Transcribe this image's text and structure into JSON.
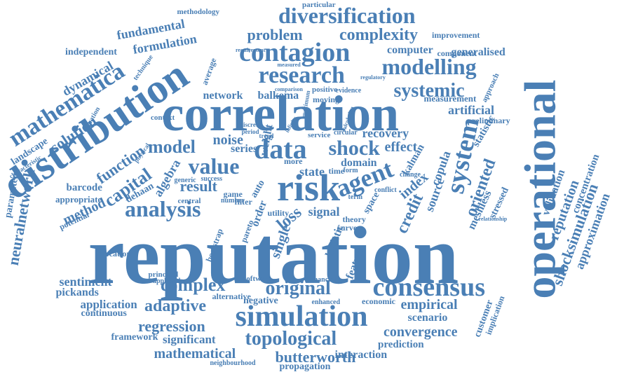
{
  "color": "#4a7fb5",
  "words": [
    {
      "text": "reputation"
    },
    {
      "text": "operational"
    },
    {
      "text": "correlation"
    },
    {
      "text": "distribution"
    },
    {
      "text": "risk"
    },
    {
      "text": "mathematica"
    },
    {
      "text": "simulation"
    },
    {
      "text": "consensus"
    },
    {
      "text": "contagion"
    },
    {
      "text": "research"
    },
    {
      "text": "diversification"
    },
    {
      "text": "agent"
    },
    {
      "text": "analysis"
    },
    {
      "text": "data"
    },
    {
      "text": "system"
    },
    {
      "text": "topological"
    },
    {
      "text": "modelling"
    },
    {
      "text": "systemic"
    },
    {
      "text": "original"
    },
    {
      "text": "complexity"
    },
    {
      "text": "value"
    },
    {
      "text": "shock"
    },
    {
      "text": "complex"
    },
    {
      "text": "adaptive"
    },
    {
      "text": "regression"
    },
    {
      "text": "mathematical"
    },
    {
      "text": "butterworth"
    },
    {
      "text": "reputation"
    },
    {
      "text": "shocksimulation"
    },
    {
      "text": "problem"
    },
    {
      "text": "model"
    },
    {
      "text": "capital"
    },
    {
      "text": "function"
    },
    {
      "text": "result"
    },
    {
      "text": "credit"
    },
    {
      "text": "index"
    },
    {
      "text": "oriented"
    },
    {
      "text": "empirical"
    },
    {
      "text": "convergence"
    },
    {
      "text": "sentiment"
    },
    {
      "text": "pickands"
    },
    {
      "text": "application"
    },
    {
      "text": "continuous"
    },
    {
      "text": "significant"
    },
    {
      "text": "framework"
    },
    {
      "text": "interaction"
    },
    {
      "text": "propagation"
    },
    {
      "text": "prediction"
    },
    {
      "text": "scenario"
    },
    {
      "text": "neuralnetwork"
    },
    {
      "text": "fundamental"
    },
    {
      "text": "formulation"
    },
    {
      "text": "independent"
    },
    {
      "text": "dynamical"
    },
    {
      "text": "solution"
    },
    {
      "text": "landscape"
    },
    {
      "text": "methodology"
    },
    {
      "text": "particular"
    },
    {
      "text": "computer"
    },
    {
      "text": "generalised"
    },
    {
      "text": "improvement"
    },
    {
      "text": "component"
    },
    {
      "text": "network"
    },
    {
      "text": "balkema"
    },
    {
      "text": "artificial"
    },
    {
      "text": "measurement"
    },
    {
      "text": "preliminary"
    },
    {
      "text": "approximation"
    },
    {
      "text": "concentration"
    },
    {
      "text": "validation"
    },
    {
      "text": "stressed"
    },
    {
      "text": "meshless"
    },
    {
      "text": "source"
    },
    {
      "text": "copula"
    },
    {
      "text": "kalman"
    },
    {
      "text": "effect"
    },
    {
      "text": "recovery"
    },
    {
      "text": "domain"
    },
    {
      "text": "state"
    },
    {
      "text": "noise"
    },
    {
      "text": "series"
    },
    {
      "text": "loss"
    },
    {
      "text": "signal"
    },
    {
      "text": "method"
    },
    {
      "text": "barcode"
    },
    {
      "text": "appropriate"
    },
    {
      "text": "potential"
    },
    {
      "text": "dehaan"
    },
    {
      "text": "algebra"
    },
    {
      "text": "parameter"
    },
    {
      "text": "allocation"
    },
    {
      "text": "customer"
    },
    {
      "text": "implication"
    },
    {
      "text": "statistic"
    },
    {
      "text": "logistic"
    },
    {
      "text": "feature"
    },
    {
      "text": "curve"
    },
    {
      "text": "theory"
    },
    {
      "text": "negative"
    },
    {
      "text": "alternative"
    },
    {
      "text": "economic"
    },
    {
      "text": "enhanced"
    },
    {
      "text": "financial"
    },
    {
      "text": "software"
    },
    {
      "text": "principal"
    },
    {
      "text": "applicable"
    },
    {
      "text": "neighbourhood"
    },
    {
      "text": "bootstrap"
    },
    {
      "text": "pareto"
    },
    {
      "text": "single"
    },
    {
      "text": "order"
    },
    {
      "text": "utility"
    },
    {
      "text": "filter"
    },
    {
      "text": "space"
    },
    {
      "text": "moving"
    },
    {
      "text": "positive"
    },
    {
      "text": "evidence"
    },
    {
      "text": "weight"
    },
    {
      "text": "context"
    },
    {
      "text": "generic"
    },
    {
      "text": "success"
    },
    {
      "text": "central"
    },
    {
      "text": "game"
    },
    {
      "text": "number"
    },
    {
      "text": "auto"
    },
    {
      "text": "more"
    },
    {
      "text": "time"
    },
    {
      "text": "form"
    },
    {
      "text": "term"
    },
    {
      "text": "service"
    },
    {
      "text": "circular"
    },
    {
      "text": "average"
    },
    {
      "text": "technique"
    },
    {
      "text": "equation"
    },
    {
      "text": "characteristic"
    },
    {
      "text": "physical"
    },
    {
      "text": "requirement"
    },
    {
      "text": "measured"
    },
    {
      "text": "comparison"
    },
    {
      "text": "discrete"
    },
    {
      "text": "period"
    },
    {
      "text": "infinity"
    },
    {
      "text": "trend"
    },
    {
      "text": "maximum"
    },
    {
      "text": "relationship"
    },
    {
      "text": "conflict"
    },
    {
      "text": "change"
    },
    {
      "text": "approach"
    },
    {
      "text": "regulatory"
    },
    {
      "text": "calculation"
    }
  ]
}
